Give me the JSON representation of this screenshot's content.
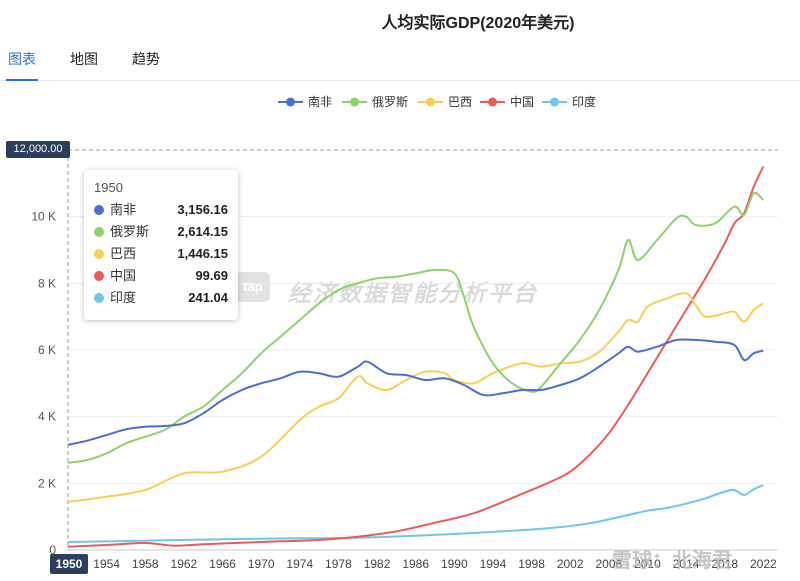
{
  "title": "人均实际GDP(2020年美元)",
  "tabs": [
    {
      "label": "图表",
      "active": true
    },
    {
      "label": "地图",
      "active": false
    },
    {
      "label": "趋势",
      "active": false
    }
  ],
  "legend": [
    {
      "name": "南非",
      "color": "#4a6fd1"
    },
    {
      "name": "俄罗斯",
      "color": "#8fd16a"
    },
    {
      "name": "巴西",
      "color": "#f7cf55"
    },
    {
      "name": "中国",
      "color": "#ee5a5a"
    },
    {
      "name": "印度",
      "color": "#6ec6ea"
    }
  ],
  "tooltip": {
    "year": "1950",
    "rows": [
      {
        "name": "南非",
        "value": "3,156.16",
        "color": "#4a6fd1"
      },
      {
        "name": "俄罗斯",
        "value": "2,614.15",
        "color": "#8fd16a"
      },
      {
        "name": "巴西",
        "value": "1,446.15",
        "color": "#f7cf55"
      },
      {
        "name": "中国",
        "value": "99.69",
        "color": "#ee5a5a"
      },
      {
        "name": "印度",
        "value": "241.04",
        "color": "#6ec6ea"
      }
    ]
  },
  "axis_pointer": {
    "y_label": "12,000.00",
    "x_label": "1950"
  },
  "watermark": {
    "icon": "tap",
    "text": "经济数据智能分析平台",
    "corner": "雪球：北海君"
  },
  "chart_data": {
    "type": "line",
    "title": "人均实际GDP(2020年美元)",
    "xlabel": "",
    "ylabel": "",
    "xlim": [
      1950,
      2023
    ],
    "ylim": [
      0,
      12000
    ],
    "y_ticks": [
      0,
      2000,
      4000,
      6000,
      8000,
      10000
    ],
    "y_tick_labels": [
      "0",
      "2 K",
      "4 K",
      "6 K",
      "8 K",
      "10 K"
    ],
    "x_ticks": [
      1954,
      1958,
      1962,
      1966,
      1970,
      1974,
      1978,
      1982,
      1986,
      1990,
      1994,
      1998,
      2002,
      2006,
      2010,
      2014,
      2018,
      2022
    ],
    "grid": true,
    "legend_position": "top-center",
    "series": [
      {
        "name": "南非",
        "color": "#4a6fd1",
        "points": [
          [
            1950,
            3156
          ],
          [
            1952,
            3280
          ],
          [
            1954,
            3450
          ],
          [
            1956,
            3620
          ],
          [
            1958,
            3700
          ],
          [
            1960,
            3720
          ],
          [
            1962,
            3800
          ],
          [
            1964,
            4100
          ],
          [
            1966,
            4500
          ],
          [
            1968,
            4800
          ],
          [
            1970,
            5000
          ],
          [
            1972,
            5150
          ],
          [
            1974,
            5350
          ],
          [
            1976,
            5300
          ],
          [
            1978,
            5200
          ],
          [
            1980,
            5500
          ],
          [
            1981,
            5650
          ],
          [
            1983,
            5300
          ],
          [
            1985,
            5250
          ],
          [
            1987,
            5100
          ],
          [
            1989,
            5150
          ],
          [
            1991,
            4950
          ],
          [
            1993,
            4650
          ],
          [
            1995,
            4700
          ],
          [
            1997,
            4800
          ],
          [
            1999,
            4800
          ],
          [
            2001,
            4950
          ],
          [
            2003,
            5150
          ],
          [
            2005,
            5500
          ],
          [
            2007,
            5900
          ],
          [
            2008,
            6100
          ],
          [
            2009,
            5950
          ],
          [
            2011,
            6100
          ],
          [
            2013,
            6300
          ],
          [
            2015,
            6300
          ],
          [
            2017,
            6250
          ],
          [
            2019,
            6150
          ],
          [
            2020,
            5700
          ],
          [
            2021,
            5900
          ],
          [
            2022,
            5980
          ]
        ]
      },
      {
        "name": "俄罗斯",
        "color": "#8fd16a",
        "points": [
          [
            1950,
            2614
          ],
          [
            1952,
            2700
          ],
          [
            1954,
            2900
          ],
          [
            1956,
            3200
          ],
          [
            1958,
            3400
          ],
          [
            1960,
            3600
          ],
          [
            1962,
            4000
          ],
          [
            1964,
            4300
          ],
          [
            1966,
            4800
          ],
          [
            1968,
            5300
          ],
          [
            1970,
            5900
          ],
          [
            1972,
            6400
          ],
          [
            1974,
            6900
          ],
          [
            1976,
            7400
          ],
          [
            1978,
            7800
          ],
          [
            1980,
            8000
          ],
          [
            1982,
            8150
          ],
          [
            1984,
            8200
          ],
          [
            1986,
            8300
          ],
          [
            1988,
            8400
          ],
          [
            1990,
            8300
          ],
          [
            1991,
            7600
          ],
          [
            1992,
            6700
          ],
          [
            1994,
            5600
          ],
          [
            1996,
            5000
          ],
          [
            1998,
            4750
          ],
          [
            1999,
            4900
          ],
          [
            2001,
            5600
          ],
          [
            2003,
            6300
          ],
          [
            2005,
            7200
          ],
          [
            2007,
            8400
          ],
          [
            2008,
            9300
          ],
          [
            2009,
            8700
          ],
          [
            2011,
            9300
          ],
          [
            2013,
            9950
          ],
          [
            2014,
            10000
          ],
          [
            2015,
            9750
          ],
          [
            2017,
            9800
          ],
          [
            2019,
            10300
          ],
          [
            2020,
            10050
          ],
          [
            2021,
            10700
          ],
          [
            2022,
            10500
          ]
        ]
      },
      {
        "name": "巴西",
        "color": "#f7cf55",
        "points": [
          [
            1950,
            1446
          ],
          [
            1954,
            1600
          ],
          [
            1958,
            1800
          ],
          [
            1962,
            2300
          ],
          [
            1966,
            2350
          ],
          [
            1970,
            2800
          ],
          [
            1974,
            3900
          ],
          [
            1976,
            4300
          ],
          [
            1978,
            4550
          ],
          [
            1980,
            5200
          ],
          [
            1981,
            5000
          ],
          [
            1983,
            4800
          ],
          [
            1985,
            5100
          ],
          [
            1987,
            5350
          ],
          [
            1989,
            5300
          ],
          [
            1990,
            5100
          ],
          [
            1992,
            5000
          ],
          [
            1994,
            5300
          ],
          [
            1997,
            5600
          ],
          [
            1999,
            5500
          ],
          [
            2001,
            5600
          ],
          [
            2003,
            5650
          ],
          [
            2005,
            5950
          ],
          [
            2007,
            6550
          ],
          [
            2008,
            6900
          ],
          [
            2009,
            6850
          ],
          [
            2010,
            7300
          ],
          [
            2012,
            7550
          ],
          [
            2014,
            7700
          ],
          [
            2015,
            7350
          ],
          [
            2016,
            7000
          ],
          [
            2018,
            7100
          ],
          [
            2019,
            7150
          ],
          [
            2020,
            6850
          ],
          [
            2021,
            7200
          ],
          [
            2022,
            7400
          ]
        ]
      },
      {
        "name": "中国",
        "color": "#ee5a5a",
        "points": [
          [
            1950,
            100
          ],
          [
            1954,
            150
          ],
          [
            1958,
            210
          ],
          [
            1961,
            130
          ],
          [
            1964,
            170
          ],
          [
            1968,
            220
          ],
          [
            1972,
            260
          ],
          [
            1976,
            300
          ],
          [
            1980,
            400
          ],
          [
            1984,
            560
          ],
          [
            1988,
            820
          ],
          [
            1992,
            1100
          ],
          [
            1996,
            1560
          ],
          [
            2000,
            2050
          ],
          [
            2002,
            2350
          ],
          [
            2004,
            2850
          ],
          [
            2006,
            3500
          ],
          [
            2008,
            4350
          ],
          [
            2010,
            5300
          ],
          [
            2012,
            6250
          ],
          [
            2014,
            7200
          ],
          [
            2016,
            8150
          ],
          [
            2018,
            9200
          ],
          [
            2019,
            9800
          ],
          [
            2020,
            10100
          ],
          [
            2021,
            10900
          ],
          [
            2022,
            11500
          ]
        ]
      },
      {
        "name": "印度",
        "color": "#6ec6ea",
        "points": [
          [
            1950,
            241
          ],
          [
            1960,
            290
          ],
          [
            1970,
            340
          ],
          [
            1980,
            370
          ],
          [
            1990,
            480
          ],
          [
            1996,
            580
          ],
          [
            2000,
            660
          ],
          [
            2004,
            800
          ],
          [
            2008,
            1050
          ],
          [
            2010,
            1180
          ],
          [
            2012,
            1260
          ],
          [
            2014,
            1390
          ],
          [
            2016,
            1550
          ],
          [
            2018,
            1750
          ],
          [
            2019,
            1800
          ],
          [
            2020,
            1650
          ],
          [
            2021,
            1820
          ],
          [
            2022,
            1950
          ]
        ]
      }
    ]
  }
}
